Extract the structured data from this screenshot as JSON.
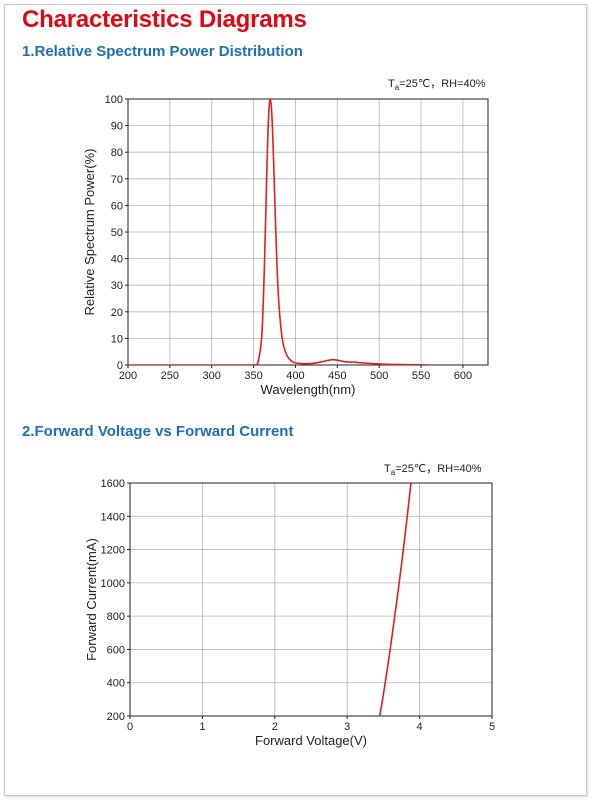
{
  "page": {
    "title": "Characteristics Diagrams"
  },
  "chart1": {
    "section_title": "1.Relative Spectrum Power Distribution",
    "condition_prefix": "T",
    "condition_sub": "a",
    "condition_suffix": "=25℃，RH=40%"
  },
  "chart2": {
    "section_title": "2.Forward Voltage vs Forward Current",
    "condition_prefix": "T",
    "condition_sub": "a",
    "condition_suffix": "=25℃，RH=40%"
  },
  "colors": {
    "curve": "#e31e24",
    "title": "#e30613",
    "section": "#1e6fb5"
  },
  "chart_data": [
    {
      "type": "line",
      "xlabel": "Wavelength(nm)",
      "ylabel": "Relative Spectrum Power(%)",
      "xlim": [
        200,
        630
      ],
      "ylim": [
        0,
        100
      ],
      "xticks": [
        200,
        250,
        300,
        350,
        400,
        450,
        500,
        550,
        600
      ],
      "yticks": [
        0,
        10,
        20,
        30,
        40,
        50,
        60,
        70,
        80,
        90,
        100
      ],
      "grid": true,
      "series": [
        {
          "x": [
            200,
            340,
            352,
            356,
            360,
            363,
            366,
            368,
            370,
            372,
            374,
            376,
            378,
            380,
            383,
            386,
            390,
            395,
            400,
            410,
            420,
            430,
            440,
            445,
            450,
            460,
            470,
            480,
            500,
            520,
            540,
            560
          ],
          "values": [
            0,
            0,
            0,
            2,
            12,
            38,
            75,
            94,
            100,
            93,
            76,
            55,
            37,
            24,
            13,
            7,
            3.5,
            1.5,
            0.8,
            0.5,
            0.6,
            1.1,
            1.8,
            2.0,
            1.8,
            1.2,
            1.1,
            0.8,
            0.4,
            0.2,
            0.1,
            0
          ]
        }
      ]
    },
    {
      "type": "line",
      "xlabel": "Forward Voltage(V)",
      "ylabel": "Forward Current(mA)",
      "xlim": [
        0,
        5
      ],
      "ylim": [
        200,
        1600
      ],
      "xticks": [
        0,
        1,
        2,
        3,
        4,
        5
      ],
      "yticks": [
        200,
        400,
        600,
        800,
        1000,
        1200,
        1400,
        1600
      ],
      "grid": true,
      "series": [
        {
          "x": [
            3.45,
            3.5,
            3.55,
            3.6,
            3.65,
            3.7,
            3.75,
            3.8,
            3.85,
            3.88
          ],
          "values": [
            200,
            330,
            470,
            620,
            780,
            940,
            1110,
            1290,
            1480,
            1600
          ]
        }
      ]
    }
  ]
}
